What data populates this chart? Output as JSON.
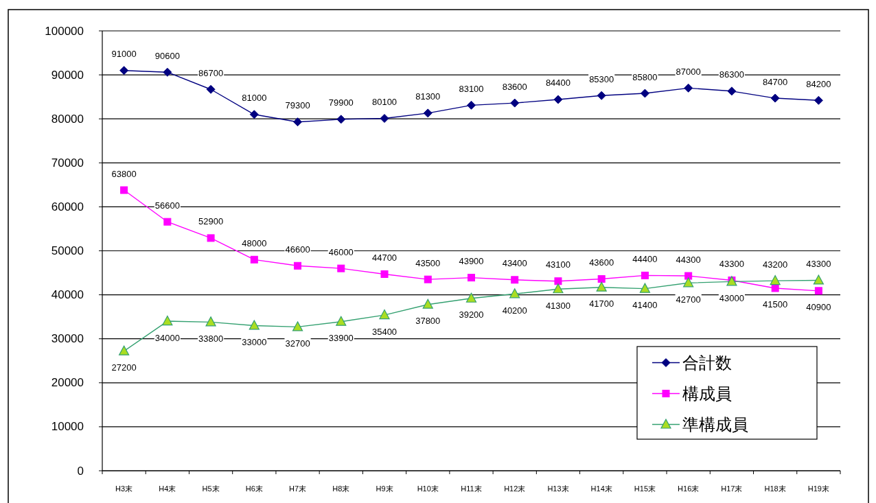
{
  "chart_data": {
    "type": "line",
    "categories": [
      "H3末",
      "H4末",
      "H5末",
      "H6末",
      "H7末",
      "H8末",
      "H9末",
      "H10末",
      "H11末",
      "H12末",
      "H13末",
      "H14末",
      "H15末",
      "H16末",
      "H17末",
      "H18末",
      "H19末"
    ],
    "series": [
      {
        "name": "合計数",
        "color": "#000080",
        "marker": "diamond",
        "values": [
          91000,
          90600,
          86700,
          81000,
          79300,
          79900,
          80100,
          81300,
          83100,
          83600,
          84400,
          85300,
          85800,
          87000,
          86300,
          84700,
          84200
        ]
      },
      {
        "name": "構成員",
        "color": "#ff00ff",
        "marker": "square",
        "values": [
          63800,
          56600,
          52900,
          48000,
          46600,
          46000,
          44700,
          43500,
          43900,
          43400,
          43100,
          43600,
          44400,
          44300,
          43300,
          41500,
          40900
        ]
      },
      {
        "name": "準構成員",
        "color": "#33a070",
        "marker": "triangle",
        "values": [
          27200,
          34000,
          33800,
          33000,
          32700,
          33900,
          35400,
          37800,
          39200,
          40200,
          41300,
          41700,
          41400,
          42700,
          43000,
          43200,
          43300
        ]
      }
    ],
    "ylim": [
      0,
      100000
    ],
    "yticks": [
      0,
      10000,
      20000,
      30000,
      40000,
      50000,
      60000,
      70000,
      80000,
      90000,
      100000
    ],
    "grid": "y",
    "legend": "bottom right",
    "data_labels": true,
    "line_style": "solid"
  }
}
